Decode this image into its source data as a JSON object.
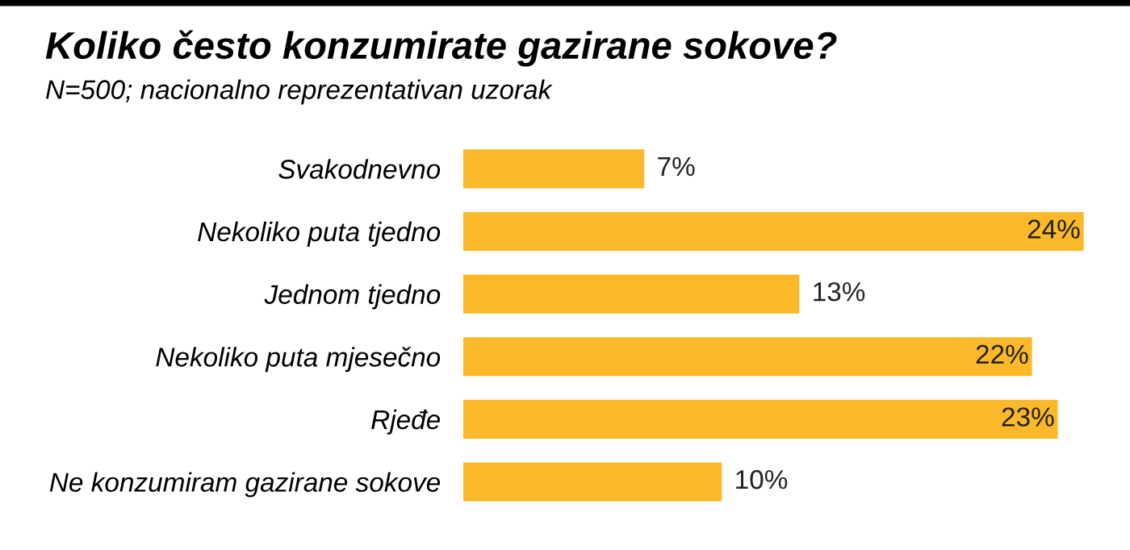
{
  "chart_data": {
    "type": "bar",
    "orientation": "horizontal",
    "title": "Koliko često konzumirate gazirane sokove?",
    "subtitle": "N=500; nacionalno reprezentativan uzorak",
    "categories": [
      "Svakodnevno",
      "Nekoliko puta tjedno",
      "Jednom tjedno",
      "Nekoliko puta mjesečno",
      "Rjeđe",
      "Ne konzumiram gazirane sokove"
    ],
    "values": [
      7,
      24,
      13,
      22,
      23,
      10
    ],
    "value_labels": [
      "7%",
      "24%",
      "13%",
      "22%",
      "23%",
      "10%"
    ],
    "color": "#fbb829",
    "grid": false,
    "legend": false
  }
}
